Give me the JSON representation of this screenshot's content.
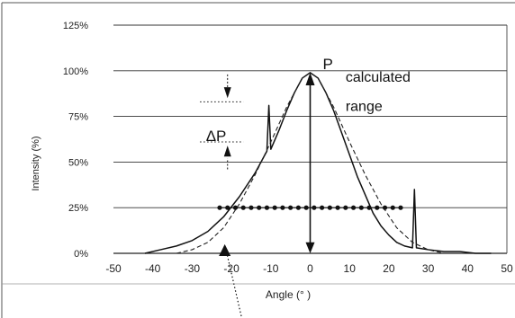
{
  "chart_data": {
    "type": "line",
    "title": "",
    "xlabel": "Angle (° )",
    "ylabel": "Intensity (%)",
    "xlim": [
      -50,
      50
    ],
    "ylim": [
      0,
      125
    ],
    "x_ticks": [
      "-50",
      "-40",
      "-30",
      "-20",
      "-10",
      "0",
      "10",
      "20",
      "30",
      "40",
      "50"
    ],
    "y_ticks": [
      "0%",
      "25%",
      "50%",
      "75%",
      "100%",
      "125%"
    ],
    "grid": "horizontal",
    "legend": "none",
    "series": [
      {
        "style": "solid-noisy",
        "x": [
          -42,
          -38,
          -34,
          -30,
          -26,
          -22,
          -18,
          -14,
          -11,
          -10.5,
          -10,
          -8,
          -6,
          -4,
          -2,
          0,
          2,
          4,
          6,
          8,
          10,
          12,
          14,
          16,
          18,
          20,
          22,
          24,
          26,
          26.5,
          27,
          30,
          34,
          38,
          42,
          46
        ],
        "y": [
          0,
          2,
          4,
          7,
          12,
          20,
          31,
          44,
          56,
          81,
          57,
          67,
          78,
          88,
          96,
          99,
          96,
          88,
          78,
          66,
          54,
          42,
          32,
          22,
          15,
          10,
          6,
          4,
          3,
          35,
          3,
          2,
          1,
          1,
          0,
          0
        ]
      },
      {
        "style": "dashed",
        "x": [
          -34,
          -30,
          -26,
          -22,
          -18,
          -14,
          -10,
          -6,
          -2,
          0,
          2,
          6,
          10,
          14,
          18,
          22,
          26,
          30,
          34
        ],
        "y": [
          0,
          2,
          6,
          14,
          27,
          43,
          61,
          80,
          96,
          99,
          96,
          80,
          61,
          43,
          27,
          14,
          6,
          2,
          0
        ]
      },
      {
        "style": "dotted-markers",
        "x": [
          -23,
          -21,
          -19,
          -17,
          -15,
          -13,
          -11,
          -9,
          -7,
          -5,
          -3,
          -1,
          1,
          3,
          5,
          7,
          9,
          11,
          13,
          15,
          17,
          19,
          21,
          23
        ],
        "y": [
          25,
          25,
          25,
          25,
          25,
          25,
          25,
          25,
          25,
          25,
          25,
          25,
          25,
          25,
          25,
          25,
          25,
          25,
          25,
          25,
          25,
          25,
          25,
          25
        ]
      }
    ],
    "annotations": {
      "peak_label": "P",
      "delta_label": "ΔP",
      "range_label_line1": "calculated",
      "range_label_line2": "range"
    }
  }
}
